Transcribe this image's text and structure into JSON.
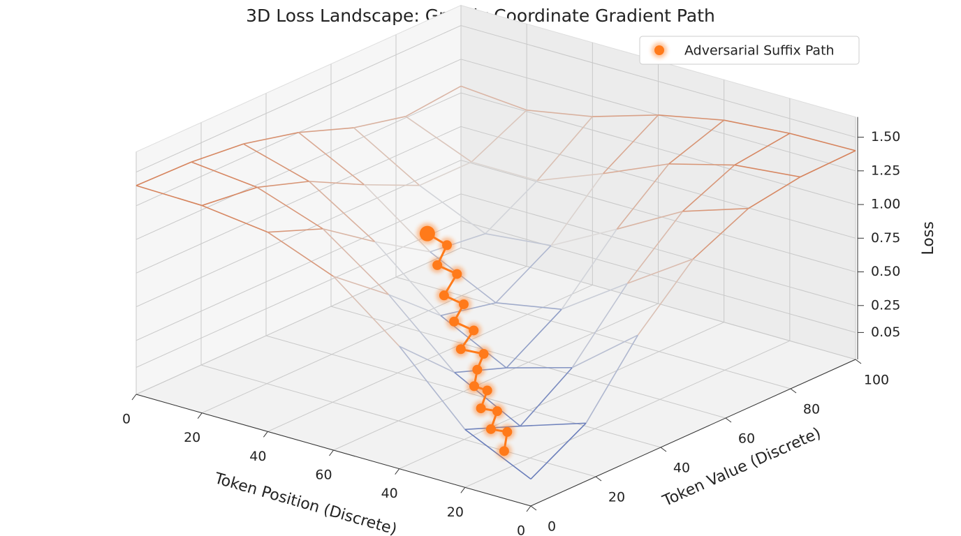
{
  "chart_data": {
    "type": "surface3d",
    "title": "3D Loss Landscape: Greedy Coordinate Gradient Path",
    "xlabel": "Token Position (Discrete)",
    "ylabel": "Token Value (Discrete)",
    "zlabel": "Loss",
    "x_categories": [
      "0",
      "20",
      "40",
      "60",
      "40",
      "20",
      "0"
    ],
    "ylim": [
      0,
      100
    ],
    "yticks": [
      0,
      20,
      40,
      60,
      80,
      100
    ],
    "zlim": [
      -0.15,
      1.65
    ],
    "zticks": [
      {
        "value": 1.5,
        "label": "1.50"
      },
      1.25,
      {
        "value": 1.0,
        "label": "1.00"
      },
      0.75,
      {
        "value": 0.5,
        "label": "0.50"
      },
      0.25,
      0.05
    ],
    "grid": true,
    "legend": "upper right",
    "surface": {
      "colors": [
        "#2b4aa8",
        "#dcdcdc",
        "#d4602a"
      ],
      "y": [
        0,
        17,
        33,
        50,
        67,
        83,
        100
      ],
      "z": [
        [
          1.4,
          1.39,
          1.35,
          1.25,
          1.1,
          1.01,
          1.05
        ],
        [
          1.39,
          1.34,
          1.21,
          1.0,
          0.81,
          0.81,
          1.01
        ],
        [
          1.33,
          1.17,
          0.9,
          0.64,
          0.59,
          0.81,
          1.1
        ],
        [
          1.14,
          0.82,
          0.49,
          0.4,
          0.64,
          1.0,
          1.25
        ],
        [
          0.76,
          0.38,
          0.24,
          0.49,
          0.9,
          1.21,
          1.35
        ],
        [
          0.28,
          0.12,
          0.38,
          0.82,
          1.17,
          1.34,
          1.39
        ],
        [
          0.05,
          0.28,
          0.76,
          1.14,
          1.33,
          1.39,
          1.4
        ]
      ]
    },
    "series": [
      {
        "name": "Adversarial Suffix Path",
        "color": "#ff7a1a",
        "x": [
          5.2,
          5.0,
          4.9,
          4.7,
          4.6,
          4.4,
          4.3,
          4.1,
          4.0,
          3.8,
          3.7,
          3.5,
          3.4,
          3.2,
          3.1,
          2.9,
          2.8,
          2.6
        ],
        "y": [
          8,
          13,
          10,
          16,
          13,
          19,
          17,
          22,
          26,
          23,
          29,
          27,
          32,
          30,
          36,
          34,
          39,
          37
        ],
        "z": [
          0.06,
          0.12,
          0.16,
          0.2,
          0.24,
          0.28,
          0.32,
          0.36,
          0.42,
          0.46,
          0.52,
          0.58,
          0.64,
          0.7,
          0.78,
          0.84,
          0.92,
          1.0
        ]
      }
    ]
  }
}
